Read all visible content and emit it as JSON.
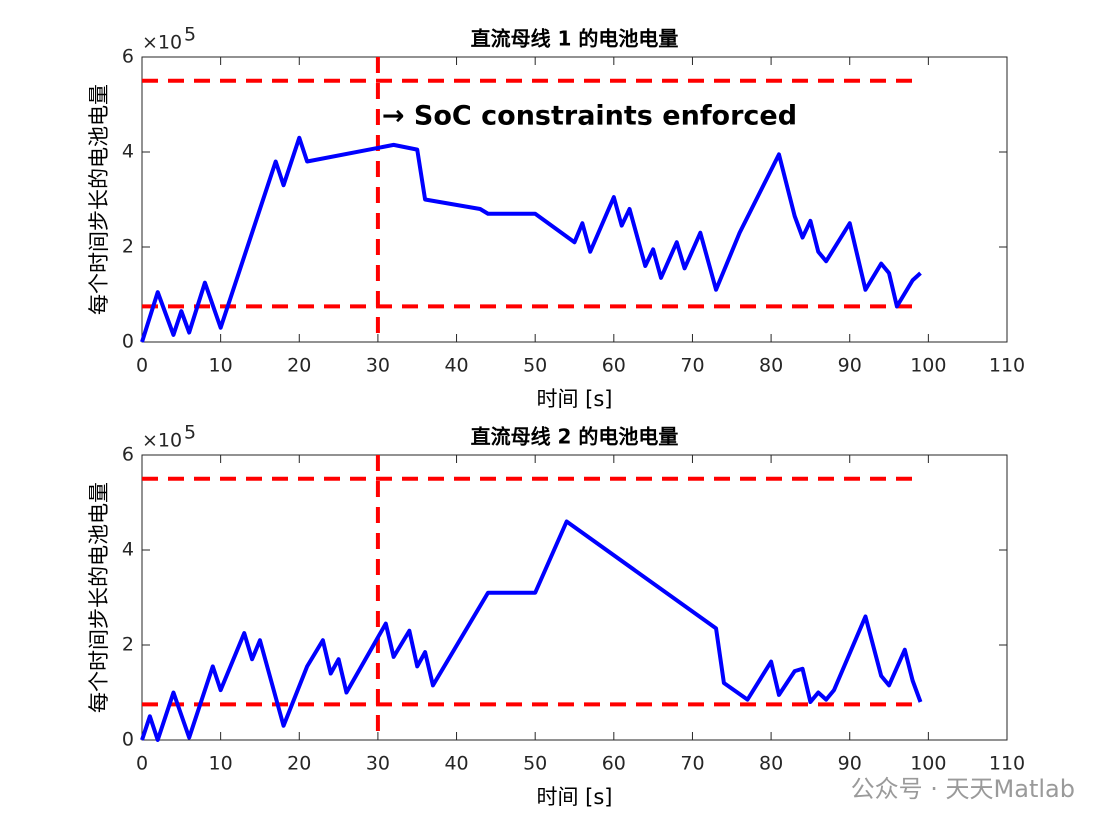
{
  "chart_data": [
    {
      "type": "line",
      "title": "直流母线 1 的电池电量",
      "xlabel": "时间 [s]",
      "ylabel": "每个时间步长的电池电量",
      "y_multiplier": {
        "base": "×10",
        "exponent": "5"
      },
      "annotation": "→ SoC constraints enforced",
      "xlim": [
        0,
        110
      ],
      "xticks": [
        0,
        10,
        20,
        30,
        40,
        50,
        60,
        70,
        80,
        90,
        100,
        110
      ],
      "ylim": [
        0,
        6
      ],
      "yticks": [
        0,
        2,
        4,
        6
      ],
      "grid": false,
      "hlines": [
        5.5,
        0.75
      ],
      "vline": 30,
      "ref_color": "#ff0000",
      "x": [
        0,
        2,
        4,
        5,
        6,
        8,
        10,
        17,
        18,
        20,
        21,
        32,
        35,
        36,
        43,
        44,
        50,
        55,
        56,
        57,
        60,
        61,
        62,
        64,
        65,
        66,
        68,
        69,
        71,
        73,
        76,
        81,
        83,
        84,
        85,
        86,
        87,
        90,
        92,
        94,
        95,
        96,
        98,
        99
      ],
      "series": [
        {
          "color": "#0000ff",
          "values": [
            0,
            1.05,
            0.15,
            0.65,
            0.2,
            1.25,
            0.3,
            3.8,
            3.3,
            4.3,
            3.8,
            4.15,
            4.05,
            3.0,
            2.8,
            2.7,
            2.7,
            2.1,
            2.5,
            1.9,
            3.05,
            2.45,
            2.8,
            1.6,
            1.95,
            1.35,
            2.1,
            1.55,
            2.3,
            1.1,
            2.3,
            3.95,
            2.65,
            2.2,
            2.55,
            1.9,
            1.7,
            2.5,
            1.1,
            1.65,
            1.45,
            0.75,
            1.3,
            1.45
          ]
        }
      ]
    },
    {
      "type": "line",
      "title": "直流母线 2 的电池电量",
      "xlabel": "时间 [s]",
      "ylabel": "每个时间步长的电池电量",
      "y_multiplier": {
        "base": "×10",
        "exponent": "5"
      },
      "xlim": [
        0,
        110
      ],
      "xticks": [
        0,
        10,
        20,
        30,
        40,
        50,
        60,
        70,
        80,
        90,
        100,
        110
      ],
      "ylim": [
        0,
        6
      ],
      "yticks": [
        0,
        2,
        4,
        6
      ],
      "grid": false,
      "hlines": [
        5.5,
        0.75
      ],
      "vline": 30,
      "ref_color": "#ff0000",
      "x": [
        0,
        1,
        2,
        4,
        6,
        9,
        10,
        13,
        14,
        15,
        18,
        21,
        23,
        24,
        25,
        26,
        31,
        32,
        34,
        35,
        36,
        37,
        44,
        50,
        54,
        73,
        74,
        77,
        80,
        81,
        83,
        84,
        85,
        86,
        87,
        88,
        92,
        94,
        95,
        97,
        98,
        99
      ],
      "series": [
        {
          "color": "#0000ff",
          "values": [
            0,
            0.5,
            0,
            1.0,
            0.05,
            1.55,
            1.05,
            2.25,
            1.7,
            2.1,
            0.3,
            1.55,
            2.1,
            1.4,
            1.7,
            1.0,
            2.45,
            1.75,
            2.3,
            1.55,
            1.85,
            1.15,
            3.1,
            3.1,
            4.6,
            2.35,
            1.2,
            0.85,
            1.65,
            0.95,
            1.45,
            1.5,
            0.8,
            1.0,
            0.85,
            1.05,
            2.6,
            1.35,
            1.15,
            1.9,
            1.25,
            0.8
          ]
        }
      ]
    }
  ],
  "watermark": "公众号 · 天天Matlab"
}
